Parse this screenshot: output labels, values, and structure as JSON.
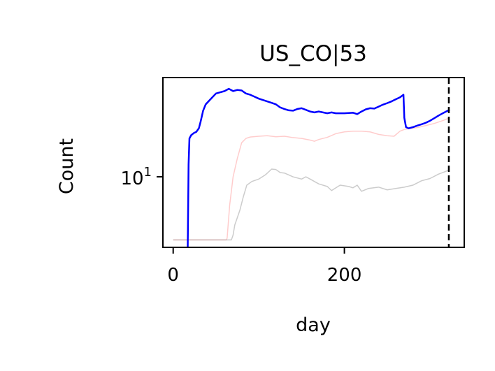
{
  "chart_data": {
    "type": "line",
    "title": "US_CO|53",
    "xlabel": "day",
    "ylabel": "Count",
    "x_ticks": [
      {
        "value": 0,
        "label": "0"
      },
      {
        "value": 200,
        "label": "200"
      }
    ],
    "y_ticks": [
      {
        "value": 10,
        "base": "10",
        "exp": "1"
      }
    ],
    "xlim": [
      -12,
      340
    ],
    "ylim": [
      2.8,
      60
    ],
    "yscale": "log",
    "grid": false,
    "legend": "none",
    "vline": {
      "x": 322,
      "style": "dashed",
      "color": "#000000"
    },
    "series": [
      {
        "color": "#ff0000",
        "opacity": 0.2,
        "linewidth": 1.5,
        "points": [
          [
            0,
            3.2
          ],
          [
            62,
            3.2
          ],
          [
            63,
            3.3
          ],
          [
            66,
            6
          ],
          [
            70,
            10
          ],
          [
            75,
            14
          ],
          [
            80,
            18.5
          ],
          [
            85,
            20
          ],
          [
            90,
            20.5
          ],
          [
            100,
            20.8
          ],
          [
            110,
            21
          ],
          [
            120,
            20.6
          ],
          [
            130,
            20.8
          ],
          [
            140,
            20.3
          ],
          [
            150,
            20
          ],
          [
            160,
            19.4
          ],
          [
            165,
            19
          ],
          [
            170,
            19.6
          ],
          [
            180,
            20.4
          ],
          [
            190,
            21.8
          ],
          [
            200,
            22.5
          ],
          [
            210,
            22.8
          ],
          [
            220,
            22.8
          ],
          [
            230,
            22.5
          ],
          [
            240,
            21.5
          ],
          [
            250,
            21
          ],
          [
            258,
            20.8
          ],
          [
            265,
            22.8
          ],
          [
            270,
            23.5
          ],
          [
            275,
            23.8
          ],
          [
            285,
            24.3
          ],
          [
            295,
            25.2
          ],
          [
            305,
            26.2
          ],
          [
            315,
            27.6
          ],
          [
            323,
            29
          ]
        ]
      },
      {
        "color": "#808080",
        "opacity": 0.4,
        "linewidth": 1.5,
        "points": [
          [
            0,
            3.2
          ],
          [
            68,
            3.2
          ],
          [
            70,
            3.5
          ],
          [
            72,
            4.2
          ],
          [
            75,
            4.8
          ],
          [
            78,
            5.5
          ],
          [
            82,
            7
          ],
          [
            86,
            8.6
          ],
          [
            92,
            9.2
          ],
          [
            100,
            9.6
          ],
          [
            108,
            10.4
          ],
          [
            115,
            11.5
          ],
          [
            120,
            11.4
          ],
          [
            125,
            10.8
          ],
          [
            130,
            10.7
          ],
          [
            140,
            10
          ],
          [
            150,
            9.6
          ],
          [
            155,
            10
          ],
          [
            160,
            9.6
          ],
          [
            170,
            8.8
          ],
          [
            180,
            8.4
          ],
          [
            185,
            7.8
          ],
          [
            195,
            8.6
          ],
          [
            205,
            8.4
          ],
          [
            210,
            8.2
          ],
          [
            215,
            8.6
          ],
          [
            220,
            7.7
          ],
          [
            228,
            8.1
          ],
          [
            240,
            8.3
          ],
          [
            250,
            7.9
          ],
          [
            260,
            8.1
          ],
          [
            270,
            8.3
          ],
          [
            280,
            8.6
          ],
          [
            290,
            9.3
          ],
          [
            300,
            9.7
          ],
          [
            310,
            10.5
          ],
          [
            318,
            11
          ],
          [
            323,
            11.4
          ]
        ]
      },
      {
        "color": "#0000ff",
        "opacity": 1.0,
        "linewidth": 2.5,
        "points": [
          [
            17,
            2.8
          ],
          [
            18,
            12.5
          ],
          [
            19,
            20
          ],
          [
            21,
            21.2
          ],
          [
            24,
            22
          ],
          [
            27,
            22.5
          ],
          [
            30,
            24
          ],
          [
            32,
            27
          ],
          [
            35,
            33
          ],
          [
            38,
            37
          ],
          [
            42,
            39.5
          ],
          [
            45,
            41.5
          ],
          [
            50,
            45
          ],
          [
            55,
            46
          ],
          [
            60,
            47
          ],
          [
            65,
            49
          ],
          [
            70,
            47
          ],
          [
            75,
            48
          ],
          [
            80,
            47.5
          ],
          [
            85,
            45
          ],
          [
            90,
            44
          ],
          [
            95,
            42.5
          ],
          [
            100,
            41
          ],
          [
            105,
            40
          ],
          [
            110,
            39
          ],
          [
            115,
            38
          ],
          [
            120,
            37
          ],
          [
            125,
            35
          ],
          [
            130,
            34
          ],
          [
            135,
            33.2
          ],
          [
            140,
            33
          ],
          [
            145,
            34
          ],
          [
            150,
            34.5
          ],
          [
            155,
            33.5
          ],
          [
            160,
            32.5
          ],
          [
            165,
            32
          ],
          [
            170,
            32.5
          ],
          [
            175,
            32
          ],
          [
            180,
            31.5
          ],
          [
            185,
            32
          ],
          [
            190,
            31.5
          ],
          [
            200,
            31.5
          ],
          [
            210,
            31.8
          ],
          [
            215,
            31
          ],
          [
            220,
            32.5
          ],
          [
            225,
            33.8
          ],
          [
            230,
            34.5
          ],
          [
            235,
            34.3
          ],
          [
            240,
            35.5
          ],
          [
            245,
            36.8
          ],
          [
            250,
            37.8
          ],
          [
            255,
            39
          ],
          [
            260,
            40.5
          ],
          [
            265,
            42
          ],
          [
            268,
            43.5
          ],
          [
            269,
            44
          ],
          [
            270,
            29
          ],
          [
            272,
            24.5
          ],
          [
            275,
            24
          ],
          [
            280,
            24.5
          ],
          [
            285,
            25.2
          ],
          [
            290,
            25.8
          ],
          [
            295,
            26.5
          ],
          [
            300,
            27.5
          ],
          [
            305,
            28.8
          ],
          [
            310,
            30.2
          ],
          [
            315,
            31.5
          ],
          [
            320,
            32.8
          ],
          [
            323,
            33.5
          ]
        ]
      }
    ]
  }
}
